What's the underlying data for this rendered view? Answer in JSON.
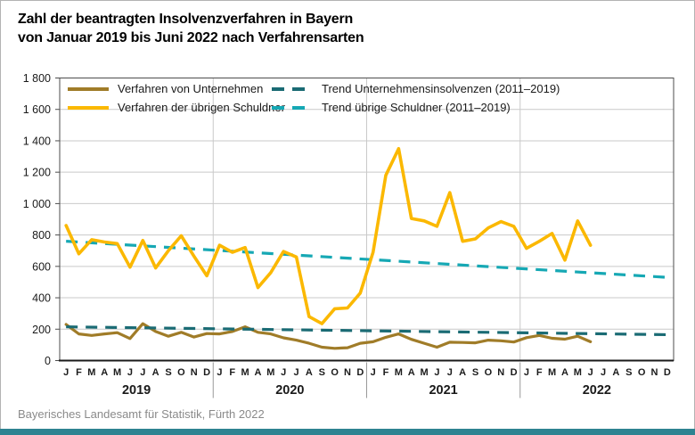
{
  "title": {
    "line1": "Zahl der beantragten Insolvenzverfahren in Bayern",
    "line2": "von Januar 2019 bis Juni 2022 nach Verfahrensarten"
  },
  "source": {
    "text": "Bayerisches Landesamt für Statistik, Fürth 2022"
  },
  "colors": {
    "company_line": "#a07c28",
    "debtor_line": "#fbb800",
    "trend_company": "#1a6b74",
    "trend_debtor": "#16a8b4",
    "grid": "#c9c9c9",
    "year_separator": "#c9c9c9",
    "axis": "#1a1a1a",
    "plot_border": "#4d4d4d",
    "tick": "#4d4d4d",
    "label_text": "#1a1a1a",
    "bottom_bar": "#2e8391",
    "source_text": "#8a8a8a"
  },
  "legend": {
    "items": [
      {
        "label": "Verfahren von Unternehmen",
        "style": "solid",
        "color_key": "company_line"
      },
      {
        "label": "Verfahren der übrigen Schuldner",
        "style": "solid",
        "color_key": "debtor_line"
      },
      {
        "label": "Trend Unternehmensinsolvenzen (2011–2019)",
        "style": "dashed",
        "color_key": "trend_company"
      },
      {
        "label": "Trend übrige Schuldner (2011–2019)",
        "style": "dashed",
        "color_key": "trend_debtor"
      }
    ]
  },
  "chart_data": {
    "type": "line",
    "title": "Zahl der beantragten Insolvenzverfahren in Bayern von Januar 2019 bis Juni 2022 nach Verfahrensarten",
    "x_month_letters": [
      "J",
      "F",
      "M",
      "A",
      "M",
      "J",
      "J",
      "A",
      "S",
      "O",
      "N",
      "D"
    ],
    "years": [
      "2019",
      "2020",
      "2021",
      "2022"
    ],
    "x_range_months": 48,
    "data_months": 42,
    "ylim": [
      0,
      1800
    ],
    "y_tick_step": 200,
    "y_tick_values": [
      0,
      200,
      400,
      600,
      800,
      1000,
      1200,
      1400,
      1600,
      1800
    ],
    "y_tick_labels": [
      "0",
      "200",
      "400",
      "600",
      "800",
      "1 000",
      "1 200",
      "1 400",
      "1 600",
      "1 800"
    ],
    "grid": "horizontal",
    "legend_position": "top-inside",
    "series": [
      {
        "name": "Verfahren von Unternehmen",
        "kind": "monthly",
        "style": "solid",
        "color_key": "company_line",
        "start": "2019-01",
        "end": "2022-06",
        "values": [
          230,
          170,
          160,
          170,
          178,
          140,
          235,
          185,
          155,
          180,
          150,
          172,
          170,
          185,
          215,
          180,
          170,
          145,
          130,
          110,
          85,
          78,
          82,
          110,
          120,
          148,
          170,
          135,
          110,
          85,
          117,
          115,
          113,
          130,
          126,
          118,
          146,
          160,
          142,
          136,
          155,
          120
        ]
      },
      {
        "name": "Verfahren der übrigen Schuldner",
        "kind": "monthly",
        "style": "solid",
        "color_key": "debtor_line",
        "start": "2019-01",
        "end": "2022-06",
        "values": [
          860,
          680,
          770,
          755,
          745,
          595,
          765,
          590,
          700,
          795,
          665,
          540,
          735,
          690,
          720,
          465,
          560,
          695,
          660,
          280,
          235,
          330,
          335,
          430,
          690,
          1180,
          1350,
          905,
          890,
          855,
          1070,
          760,
          775,
          845,
          885,
          855,
          715,
          760,
          810,
          640,
          890,
          735
        ]
      },
      {
        "name": "Trend Unternehmensinsolvenzen (2011–2019)",
        "kind": "trend",
        "style": "dashed",
        "color_key": "trend_company",
        "span_months": [
          0,
          47
        ],
        "endpoints": [
          215,
          165
        ]
      },
      {
        "name": "Trend übrige Schuldner (2011–2019)",
        "kind": "trend",
        "style": "dashed",
        "color_key": "trend_debtor",
        "span_months": [
          0,
          47
        ],
        "endpoints": [
          760,
          530
        ]
      }
    ]
  }
}
